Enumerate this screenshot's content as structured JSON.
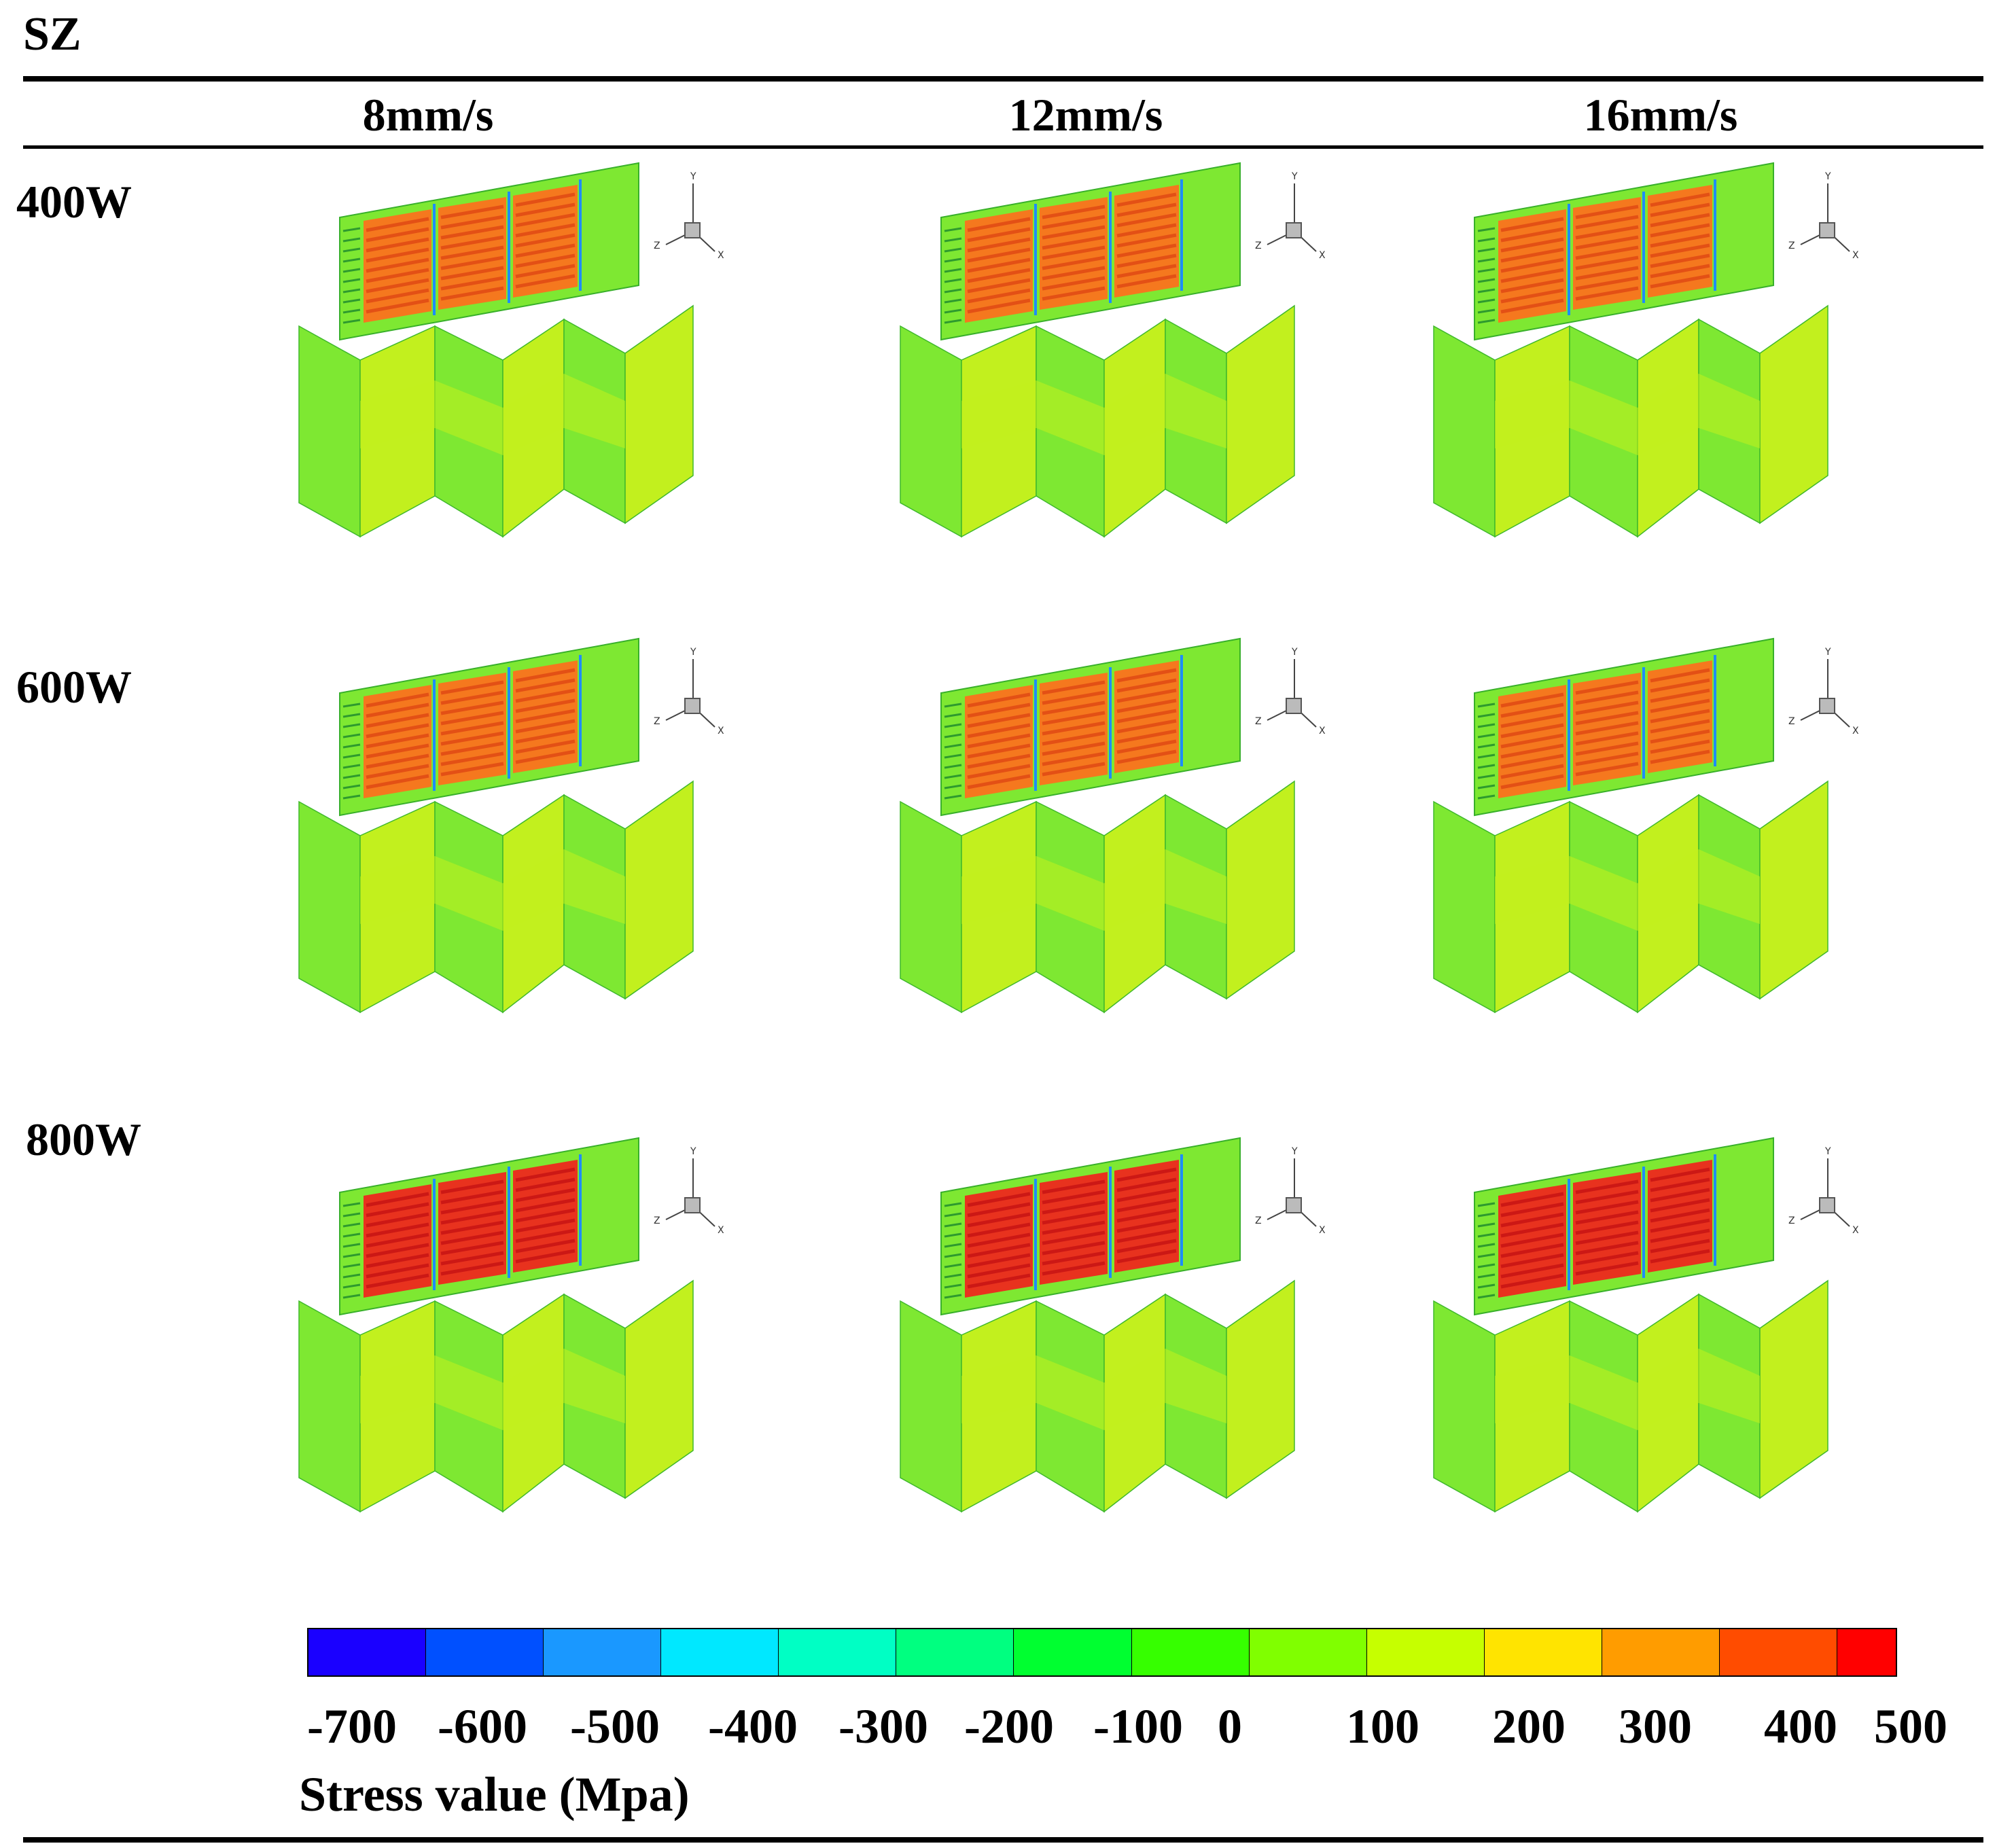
{
  "figure": {
    "title": "SZ",
    "columns": [
      "8mm/s",
      "12mm/s",
      "16mm/s"
    ],
    "rows": [
      "400W",
      "600W",
      "800W"
    ],
    "axis_labels": {
      "y": "Y",
      "z": "Z",
      "x": "X"
    }
  },
  "colorbar": {
    "title": "Stress value (Mpa)",
    "tick_labels": [
      "-700",
      "-600",
      "-500",
      "-400",
      "-300",
      "-200",
      "-100",
      "0",
      "100",
      "200",
      "300",
      "400",
      "500"
    ],
    "colors": [
      "#1a00ff",
      "#0050ff",
      "#1a98ff",
      "#00e8ff",
      "#00ffc4",
      "#00ff80",
      "#00ff30",
      "#36ff00",
      "#80ff00",
      "#c6ff00",
      "#ffe400",
      "#ff9c00",
      "#ff4c00",
      "#ff0000"
    ]
  },
  "palette": {
    "base_green": "#7ee832",
    "yellow_green": "#c2f01e",
    "hot_orange": "#f5781e",
    "hot_red": "#e8321e",
    "edge_blue": "#1e8cff"
  }
}
